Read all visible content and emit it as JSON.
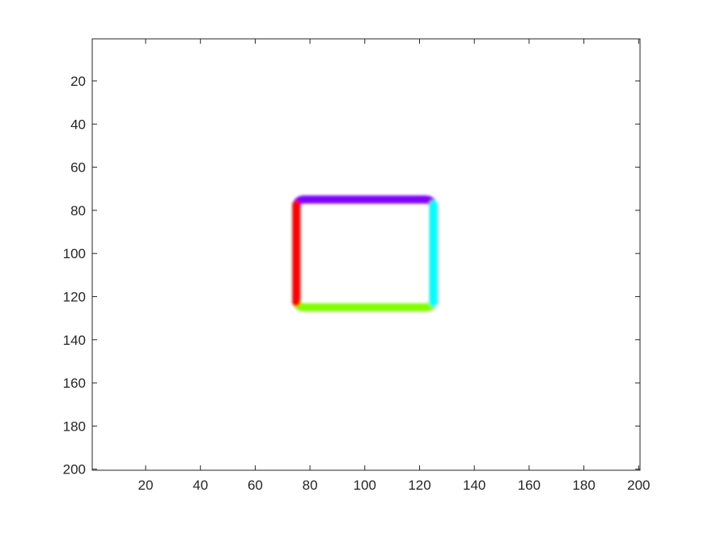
{
  "chart_data": {
    "type": "heatmap",
    "title": "",
    "xlabel": "",
    "ylabel": "",
    "xlim": [
      1,
      200
    ],
    "ylim": [
      1,
      200
    ],
    "y_direction": "reversed",
    "grid": false,
    "x_ticks": [
      20,
      40,
      60,
      80,
      100,
      120,
      140,
      160,
      180,
      200
    ],
    "y_ticks": [
      20,
      40,
      60,
      80,
      100,
      120,
      140,
      160,
      180,
      200
    ],
    "background_color": "#ffffff",
    "shape": {
      "kind": "rounded-rectangle-outline",
      "x_range": [
        75,
        125
      ],
      "y_range": [
        75,
        125
      ],
      "edges": [
        {
          "side": "left",
          "color": "#ff0000"
        },
        {
          "side": "top",
          "color": "#7f00ff"
        },
        {
          "side": "right",
          "color": "#00ffff"
        },
        {
          "side": "bottom",
          "color": "#80ff00"
        }
      ]
    }
  }
}
